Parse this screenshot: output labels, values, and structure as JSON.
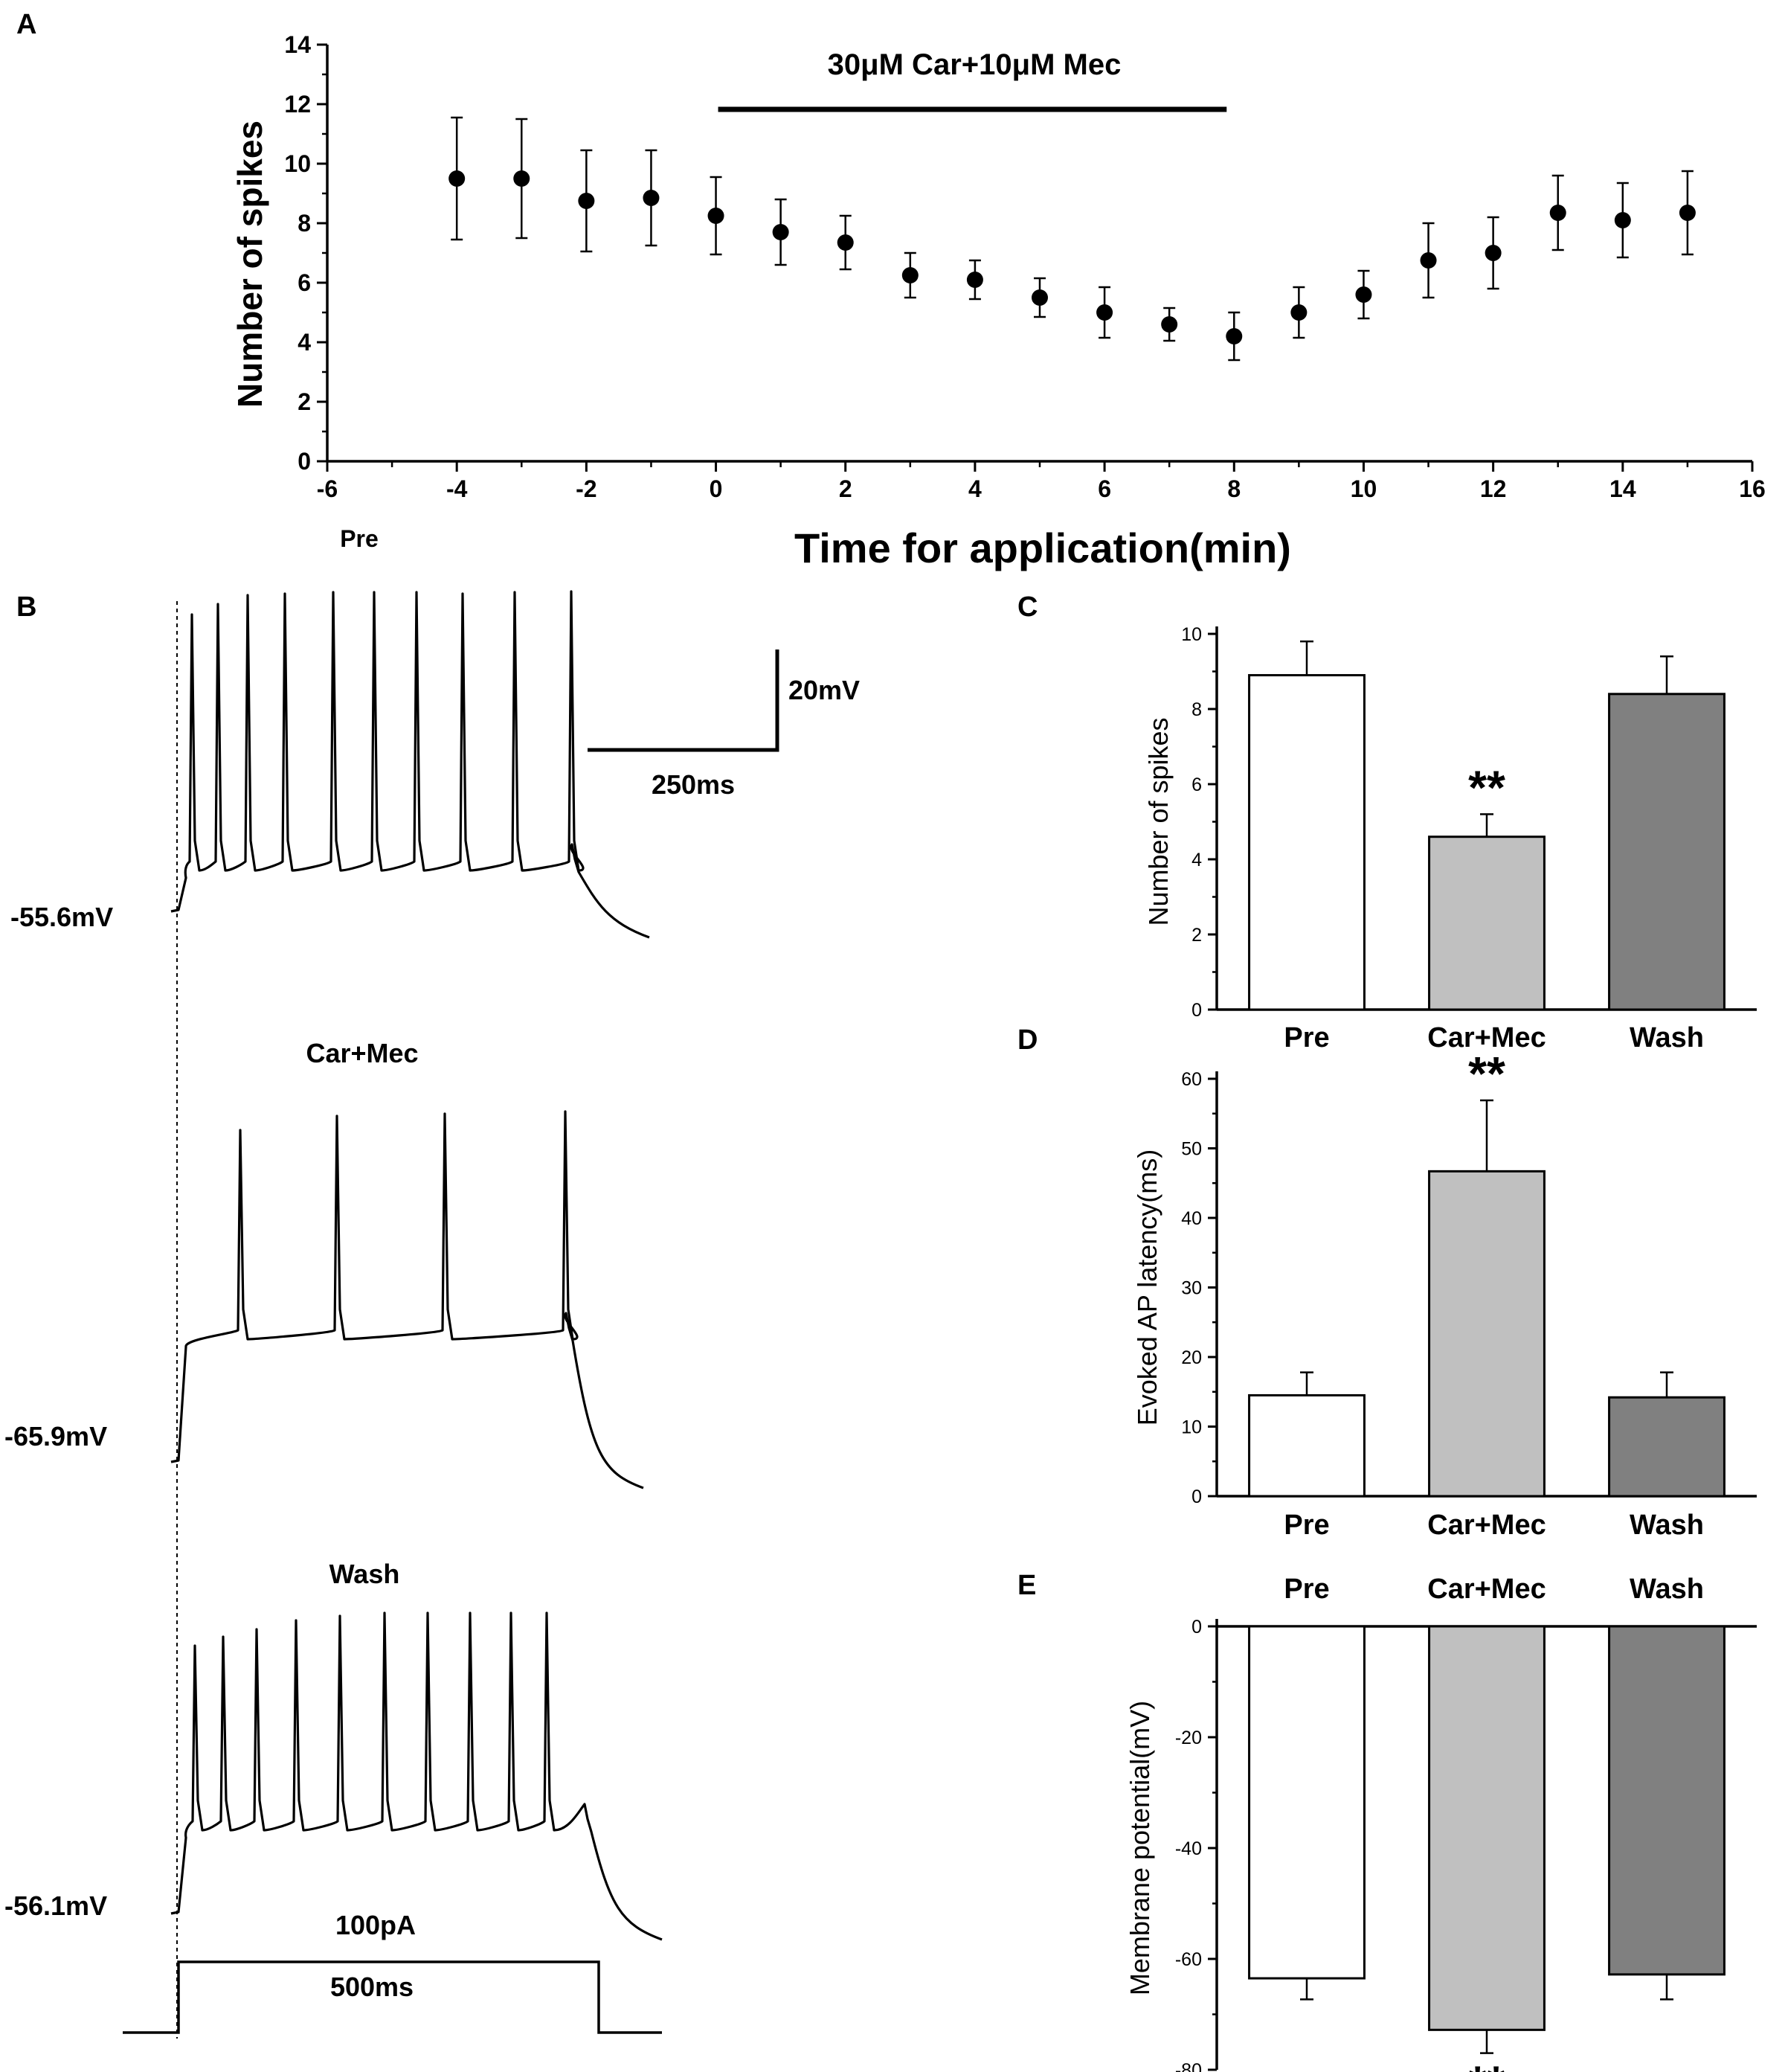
{
  "panels": {
    "a": "A",
    "b": "B",
    "c": "C",
    "d": "D",
    "e": "E"
  },
  "panel_a": {
    "drug_label": "30μM Car+10μM Mec",
    "pre_label": "Pre",
    "xlabel": "Time for application(min)",
    "ylabel": "Number of spikes"
  },
  "panel_b": {
    "vm_labels": [
      "-55.6mV",
      "-65.9mV",
      "-56.1mV"
    ],
    "trace_titles": [
      "Car+Mec",
      "Wash"
    ],
    "scalebar_v": "20mV",
    "scalebar_t": "250ms",
    "stim_amp": "100pA",
    "stim_dur": "500ms"
  },
  "chart_data": [
    {
      "id": "A",
      "type": "scatter",
      "title": "30μM Car+10μM Mec",
      "xlabel": "Time for application(min)",
      "ylabel": "Number of spikes",
      "xlim": [
        -6,
        16
      ],
      "ylim": [
        0,
        14
      ],
      "xticks": [
        -6,
        -4,
        -2,
        0,
        2,
        4,
        6,
        8,
        10,
        12,
        14,
        16
      ],
      "yticks": [
        0,
        2,
        4,
        6,
        8,
        10,
        12,
        14
      ],
      "x": [
        -4,
        -3,
        -2,
        -1,
        0,
        1,
        2,
        3,
        4,
        5,
        6,
        7,
        8,
        9,
        10,
        11,
        12,
        13,
        14,
        15
      ],
      "y": [
        9.5,
        9.5,
        8.75,
        8.85,
        8.25,
        7.7,
        7.35,
        6.25,
        6.1,
        5.5,
        5.0,
        4.6,
        4.2,
        5.0,
        5.6,
        6.75,
        7.0,
        8.35,
        8.1,
        8.35
      ],
      "err": [
        2.05,
        2.0,
        1.7,
        1.6,
        1.3,
        1.1,
        0.9,
        0.75,
        0.65,
        0.65,
        0.85,
        0.55,
        0.8,
        0.85,
        0.8,
        1.25,
        1.2,
        1.25,
        1.25,
        1.4
      ],
      "drug_period": [
        0,
        8
      ]
    },
    {
      "id": "C",
      "type": "bar",
      "categories": [
        "Pre",
        "Car+Mec",
        "Wash"
      ],
      "values": [
        8.9,
        4.6,
        8.4
      ],
      "err": [
        0.9,
        0.6,
        1.0
      ],
      "ylabel": "Number of spikes",
      "ylim": [
        0,
        10
      ],
      "yticks": [
        0,
        2,
        4,
        6,
        8,
        10
      ],
      "significance": [
        "",
        "**",
        ""
      ],
      "colors": [
        "#ffffff",
        "#c0c0c0",
        "#808080"
      ]
    },
    {
      "id": "D",
      "type": "bar",
      "categories": [
        "Pre",
        "Car+Mec",
        "Wash"
      ],
      "values": [
        14.5,
        46.7,
        14.2
      ],
      "err": [
        3.3,
        10.2,
        3.6
      ],
      "ylabel": "Evoked AP latency(ms)",
      "ylim": [
        0,
        60
      ],
      "yticks": [
        0,
        10,
        20,
        30,
        40,
        50,
        60
      ],
      "significance": [
        "",
        "**",
        ""
      ],
      "colors": [
        "#ffffff",
        "#c0c0c0",
        "#808080"
      ]
    },
    {
      "id": "E",
      "type": "bar",
      "categories": [
        "Pre",
        "Car+Mec",
        "Wash"
      ],
      "values": [
        -63.5,
        -72.8,
        -62.8
      ],
      "err": [
        3.8,
        4.2,
        4.5
      ],
      "ylabel": "Membrane potential(mV)",
      "ylim": [
        -80,
        0
      ],
      "yticks": [
        0,
        -20,
        -40,
        -60,
        -80
      ],
      "significance": [
        "",
        "**",
        ""
      ],
      "colors": [
        "#ffffff",
        "#c0c0c0",
        "#808080"
      ]
    }
  ]
}
